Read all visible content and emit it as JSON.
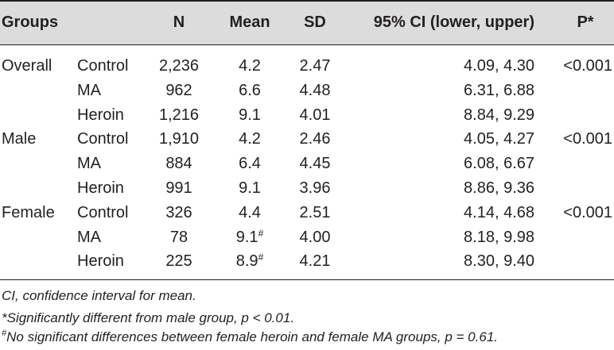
{
  "table": {
    "headers": {
      "groups": "Groups",
      "n": "N",
      "mean": "Mean",
      "sd": "SD",
      "ci": "95% CI (lower, upper)",
      "p": "P*"
    },
    "rows": [
      {
        "group": "Overall",
        "sub": "Control",
        "n": "2,236",
        "mean": "4.2",
        "mean_mark": "",
        "sd": "2.47",
        "ci": "4.09, 4.30",
        "p": "<0.001"
      },
      {
        "group": "",
        "sub": "MA",
        "n": "962",
        "mean": "6.6",
        "mean_mark": "",
        "sd": "4.48",
        "ci": "6.31, 6.88",
        "p": ""
      },
      {
        "group": "",
        "sub": "Heroin",
        "n": "1,216",
        "mean": "9.1",
        "mean_mark": "",
        "sd": "4.01",
        "ci": "8.84, 9.29",
        "p": ""
      },
      {
        "group": "Male",
        "sub": "Control",
        "n": "1,910",
        "mean": "4.2",
        "mean_mark": "",
        "sd": "2.46",
        "ci": "4.05, 4.27",
        "p": "<0.001"
      },
      {
        "group": "",
        "sub": "MA",
        "n": "884",
        "mean": "6.4",
        "mean_mark": "",
        "sd": "4.45",
        "ci": "6.08, 6.67",
        "p": ""
      },
      {
        "group": "",
        "sub": "Heroin",
        "n": "991",
        "mean": "9.1",
        "mean_mark": "",
        "sd": "3.96",
        "ci": "8.86, 9.36",
        "p": ""
      },
      {
        "group": "Female",
        "sub": "Control",
        "n": "326",
        "mean": "4.4",
        "mean_mark": "",
        "sd": "2.51",
        "ci": "4.14, 4.68",
        "p": "<0.001"
      },
      {
        "group": "",
        "sub": "MA",
        "n": "78",
        "mean": "9.1",
        "mean_mark": "#",
        "sd": "4.00",
        "ci": "8.18, 9.98",
        "p": ""
      },
      {
        "group": "",
        "sub": "Heroin",
        "n": "225",
        "mean": "8.9",
        "mean_mark": "#",
        "sd": "4.21",
        "ci": "8.30, 9.40",
        "p": ""
      }
    ]
  },
  "notes": {
    "ci": "CI, confidence interval for mean.",
    "sig": "*Significantly different from male group, p < 0.01.",
    "hash_mark": "#",
    "hash": "No significant differences between female heroin and female MA groups, p = 0.61."
  }
}
